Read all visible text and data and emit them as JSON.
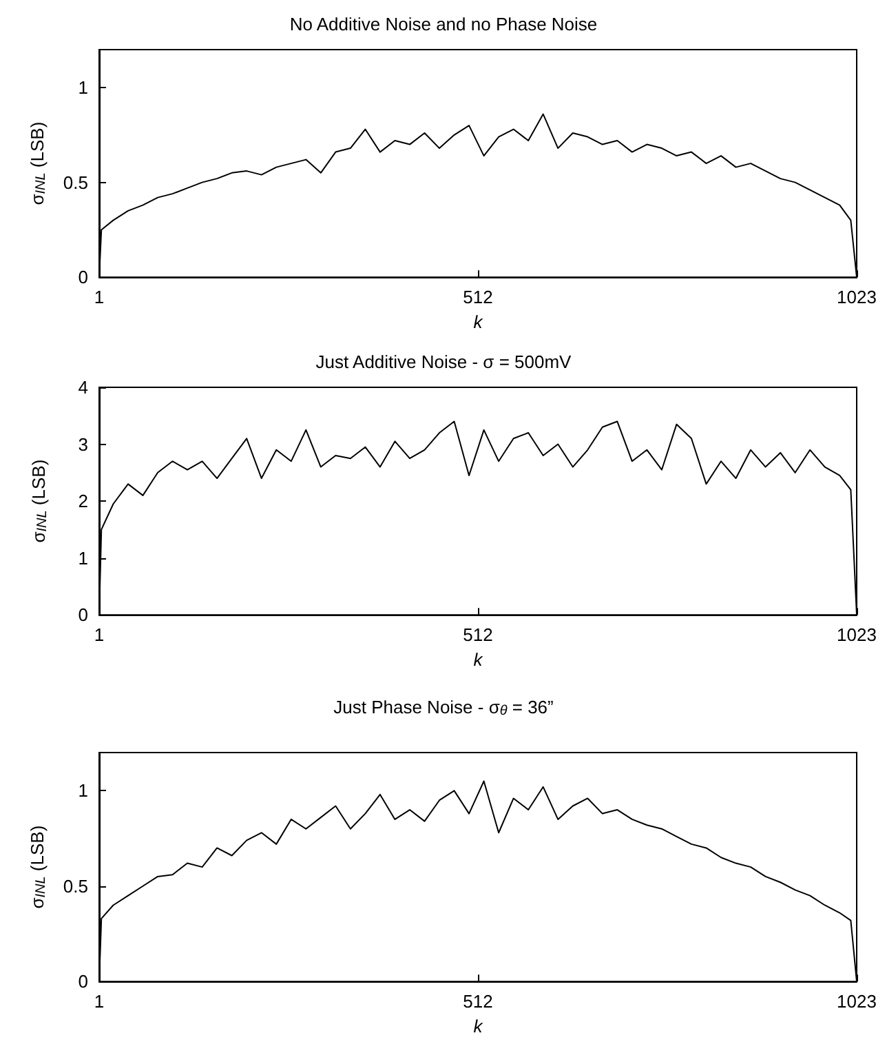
{
  "chart_data": [
    {
      "type": "line",
      "title": "No Additive Noise and no Phase Noise",
      "xlabel": "k",
      "ylabel": "σ$_{INL}$ (LSB)",
      "xlim": [
        1,
        1023
      ],
      "xticks": [
        1,
        512,
        1023
      ],
      "ylim": [
        0,
        1.2
      ],
      "yticks": [
        0,
        0.5,
        1
      ],
      "series": [
        {
          "color": "#000000",
          "x": [
            1,
            4,
            20,
            40,
            60,
            80,
            100,
            120,
            140,
            160,
            180,
            200,
            220,
            240,
            260,
            280,
            300,
            320,
            340,
            360,
            380,
            400,
            420,
            440,
            460,
            480,
            500,
            520,
            540,
            560,
            580,
            600,
            620,
            640,
            660,
            680,
            700,
            720,
            740,
            760,
            780,
            800,
            820,
            840,
            860,
            880,
            900,
            920,
            940,
            960,
            980,
            1000,
            1015,
            1023
          ],
          "values": [
            0,
            0.25,
            0.3,
            0.35,
            0.38,
            0.42,
            0.44,
            0.47,
            0.5,
            0.52,
            0.55,
            0.56,
            0.54,
            0.58,
            0.6,
            0.62,
            0.55,
            0.66,
            0.68,
            0.78,
            0.66,
            0.72,
            0.7,
            0.76,
            0.68,
            0.75,
            0.8,
            0.64,
            0.74,
            0.78,
            0.72,
            0.86,
            0.68,
            0.76,
            0.74,
            0.7,
            0.72,
            0.66,
            0.7,
            0.68,
            0.64,
            0.66,
            0.6,
            0.64,
            0.58,
            0.6,
            0.56,
            0.52,
            0.5,
            0.46,
            0.42,
            0.38,
            0.3,
            0
          ]
        }
      ]
    },
    {
      "type": "line",
      "title": "Just Additive Noise - σ = 500mV",
      "xlabel": "k",
      "ylabel": "σ$_{INL}$ (LSB)",
      "xlim": [
        1,
        1023
      ],
      "xticks": [
        1,
        512,
        1023
      ],
      "ylim": [
        0,
        4
      ],
      "yticks": [
        0,
        1,
        2,
        3,
        4
      ],
      "series": [
        {
          "color": "#000000",
          "x": [
            1,
            4,
            20,
            40,
            60,
            80,
            100,
            120,
            140,
            160,
            180,
            200,
            220,
            240,
            260,
            280,
            300,
            320,
            340,
            360,
            380,
            400,
            420,
            440,
            460,
            480,
            500,
            520,
            540,
            560,
            580,
            600,
            620,
            640,
            660,
            680,
            700,
            720,
            740,
            760,
            780,
            800,
            820,
            840,
            860,
            880,
            900,
            920,
            940,
            960,
            980,
            1000,
            1015,
            1023
          ],
          "values": [
            0,
            1.5,
            1.95,
            2.3,
            2.1,
            2.5,
            2.7,
            2.55,
            2.7,
            2.4,
            2.75,
            3.1,
            2.4,
            2.9,
            2.7,
            3.25,
            2.6,
            2.8,
            2.75,
            2.95,
            2.6,
            3.05,
            2.75,
            2.9,
            3.2,
            3.4,
            2.45,
            3.25,
            2.7,
            3.1,
            3.2,
            2.8,
            3.0,
            2.6,
            2.9,
            3.3,
            3.4,
            2.7,
            2.9,
            2.55,
            3.35,
            3.1,
            2.3,
            2.7,
            2.4,
            2.9,
            2.6,
            2.85,
            2.5,
            2.9,
            2.6,
            2.45,
            2.2,
            0
          ]
        }
      ]
    },
    {
      "type": "line",
      "title": "Just Phase Noise - σ$_{θ}$ = 36”",
      "xlabel": "k",
      "ylabel": "σ$_{INL}$ (LSB)",
      "xlim": [
        1,
        1023
      ],
      "xticks": [
        1,
        512,
        1023
      ],
      "ylim": [
        0,
        1.2
      ],
      "yticks": [
        0,
        0.5,
        1
      ],
      "series": [
        {
          "color": "#000000",
          "x": [
            1,
            4,
            20,
            40,
            60,
            80,
            100,
            120,
            140,
            160,
            180,
            200,
            220,
            240,
            260,
            280,
            300,
            320,
            340,
            360,
            380,
            400,
            420,
            440,
            460,
            480,
            500,
            520,
            540,
            560,
            580,
            600,
            620,
            640,
            660,
            680,
            700,
            720,
            740,
            760,
            780,
            800,
            820,
            840,
            860,
            880,
            900,
            920,
            940,
            960,
            980,
            1000,
            1015,
            1023
          ],
          "values": [
            0,
            0.33,
            0.4,
            0.45,
            0.5,
            0.55,
            0.56,
            0.62,
            0.6,
            0.7,
            0.66,
            0.74,
            0.78,
            0.72,
            0.85,
            0.8,
            0.86,
            0.92,
            0.8,
            0.88,
            0.98,
            0.85,
            0.9,
            0.84,
            0.95,
            1.0,
            0.88,
            1.05,
            0.78,
            0.96,
            0.9,
            1.02,
            0.85,
            0.92,
            0.96,
            0.88,
            0.9,
            0.85,
            0.82,
            0.8,
            0.76,
            0.72,
            0.7,
            0.65,
            0.62,
            0.6,
            0.55,
            0.52,
            0.48,
            0.45,
            0.4,
            0.36,
            0.32,
            0
          ]
        }
      ]
    }
  ]
}
